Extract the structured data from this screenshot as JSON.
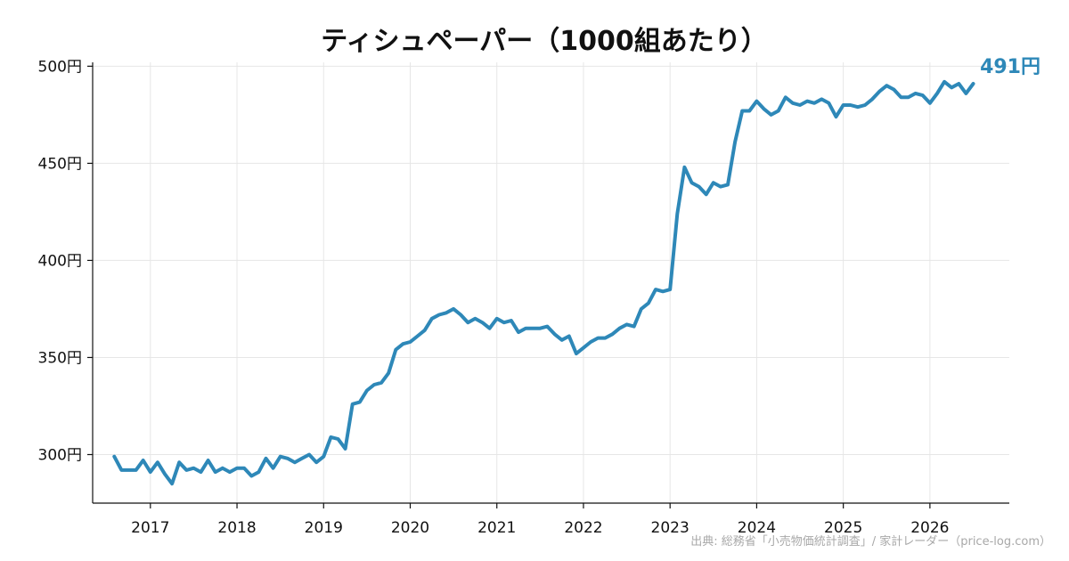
{
  "chart_data": {
    "type": "line",
    "title": "ティシュペーパー（1000組あたり）",
    "xlabel": "",
    "ylabel": "",
    "y_unit": "円",
    "ylim": [
      275,
      502
    ],
    "xlim": [
      "2016-05",
      "2026-12"
    ],
    "y_ticks": [
      300,
      350,
      400,
      450,
      500
    ],
    "y_tick_labels": [
      "300円",
      "350円",
      "400円",
      "450円",
      "500円"
    ],
    "x_ticks": [
      "2017-01",
      "2018-01",
      "2019-01",
      "2020-01",
      "2021-01",
      "2022-01",
      "2023-01",
      "2024-01",
      "2025-01",
      "2026-01"
    ],
    "x_tick_labels": [
      "2017",
      "2018",
      "2019",
      "2020",
      "2021",
      "2022",
      "2023",
      "2024",
      "2025",
      "2026"
    ],
    "grid": true,
    "series_color": "#2e88b8",
    "start": "2016-08",
    "values": [
      299,
      292,
      292,
      292,
      297,
      291,
      296,
      290,
      285,
      296,
      292,
      293,
      291,
      297,
      291,
      293,
      291,
      293,
      293,
      289,
      291,
      298,
      293,
      299,
      298,
      296,
      298,
      300,
      296,
      299,
      309,
      308,
      303,
      326,
      327,
      333,
      336,
      337,
      342,
      354,
      357,
      358,
      361,
      364,
      370,
      372,
      373,
      375,
      372,
      368,
      370,
      368,
      365,
      370,
      368,
      369,
      363,
      365,
      365,
      365,
      366,
      362,
      359,
      361,
      352,
      355,
      358,
      360,
      360,
      362,
      365,
      367,
      366,
      375,
      378,
      385,
      384,
      385,
      424,
      448,
      440,
      438,
      434,
      440,
      438,
      439,
      461,
      477,
      477,
      482,
      478,
      475,
      477,
      484,
      481,
      480,
      482,
      481,
      483,
      481,
      474,
      480,
      480,
      479,
      480,
      483,
      487,
      490,
      488,
      484,
      484,
      486,
      485,
      481,
      486,
      492,
      489,
      491,
      486,
      491
    ],
    "end_label": "491円",
    "source_note": "出典: 総務省「小売物価統計調査」/ 家計レーダー（price-log.com）"
  }
}
